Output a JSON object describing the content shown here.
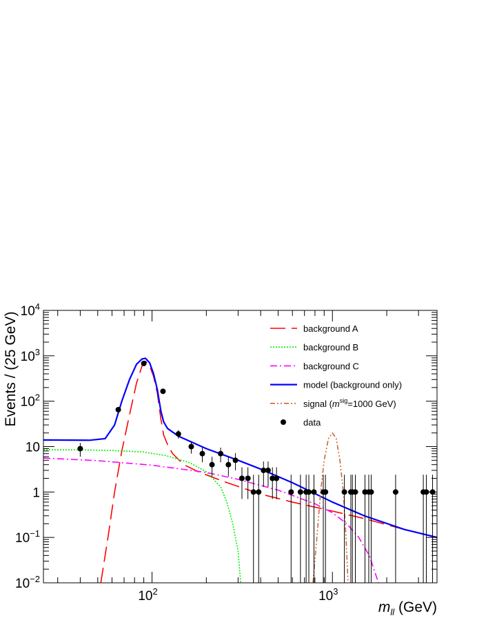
{
  "chart_data": {
    "type": "line",
    "xlabel": "m",
    "xlabel_sub": "ll",
    "xlabel_unit": " (GeV)",
    "ylabel": "Events / (25 GeV)",
    "xscale": "log",
    "yscale": "log",
    "xlim": [
      25,
      3800
    ],
    "ylim": [
      0.01,
      10000
    ],
    "x_tick_labels": [
      {
        "value": 100,
        "base": "10",
        "exp": "2"
      },
      {
        "value": 1000,
        "base": "10",
        "exp": "3"
      }
    ],
    "y_tick_labels": [
      {
        "value": 0.01,
        "base": "10",
        "exp": "−2",
        "text": ""
      },
      {
        "value": 0.1,
        "base": "10",
        "exp": "−1",
        "text": ""
      },
      {
        "value": 1,
        "text": "1"
      },
      {
        "value": 10,
        "text": "10"
      },
      {
        "value": 100,
        "base": "10",
        "exp": "2",
        "text": ""
      },
      {
        "value": 1000,
        "base": "10",
        "exp": "3",
        "text": ""
      },
      {
        "value": 10000,
        "base": "10",
        "exp": "4",
        "text": ""
      }
    ],
    "legend_position": "top-right",
    "legend": [
      {
        "label": "background A",
        "style": "dashed",
        "color": "#ff0000"
      },
      {
        "label": "background B",
        "style": "dotted",
        "color": "#00ee00"
      },
      {
        "label": "background C",
        "style": "dashdot",
        "color": "#ff00ff"
      },
      {
        "label": "model (background only)",
        "style": "solid",
        "color": "#0000ff"
      },
      {
        "label_prefix": "signal (",
        "label_var": "m",
        "label_sup": "sig",
        "label_suffix": "=1000 GeV)",
        "style": "dashdotdot",
        "color": "#cc6633"
      },
      {
        "label": "data",
        "style": "marker",
        "color": "#000000"
      }
    ],
    "series": [
      {
        "name": "background A",
        "color": "#ff0000",
        "style": "dashed",
        "points": [
          [
            52,
            0.01
          ],
          [
            57,
            0.1
          ],
          [
            62,
            1
          ],
          [
            68,
            8
          ],
          [
            75,
            50
          ],
          [
            82,
            250
          ],
          [
            88,
            600
          ],
          [
            92,
            760
          ],
          [
            97,
            600
          ],
          [
            102,
            350
          ],
          [
            107,
            150
          ],
          [
            112,
            40
          ],
          [
            116,
            18
          ],
          [
            122,
            11
          ],
          [
            130,
            7
          ],
          [
            150,
            4
          ],
          [
            180,
            2.8
          ],
          [
            250,
            1.7
          ],
          [
            400,
            0.9
          ],
          [
            600,
            0.6
          ],
          [
            1000,
            0.38
          ],
          [
            1500,
            0.26
          ],
          [
            2500,
            0.15
          ],
          [
            3800,
            0.1
          ]
        ]
      },
      {
        "name": "background B",
        "color": "#00ee00",
        "style": "dotted",
        "points": [
          [
            25,
            8.5
          ],
          [
            40,
            8.5
          ],
          [
            60,
            8.2
          ],
          [
            90,
            7.6
          ],
          [
            120,
            6.3
          ],
          [
            160,
            4.5
          ],
          [
            200,
            2.8
          ],
          [
            240,
            1.3
          ],
          [
            260,
            0.6
          ],
          [
            280,
            0.2
          ],
          [
            300,
            0.05
          ],
          [
            310,
            0.01
          ]
        ]
      },
      {
        "name": "background C",
        "color": "#ff00ff",
        "style": "dashdot",
        "points": [
          [
            25,
            5.6
          ],
          [
            50,
            4.9
          ],
          [
            100,
            3.9
          ],
          [
            200,
            2.7
          ],
          [
            300,
            1.9
          ],
          [
            500,
            1.1
          ],
          [
            800,
            0.55
          ],
          [
            1000,
            0.35
          ],
          [
            1200,
            0.2
          ],
          [
            1400,
            0.1
          ],
          [
            1600,
            0.04
          ],
          [
            1800,
            0.01
          ]
        ]
      },
      {
        "name": "model (background only)",
        "color": "#0000ff",
        "style": "solid",
        "points": [
          [
            25,
            14
          ],
          [
            45,
            13.8
          ],
          [
            55,
            15
          ],
          [
            62,
            30
          ],
          [
            68,
            100
          ],
          [
            75,
            300
          ],
          [
            82,
            650
          ],
          [
            88,
            850
          ],
          [
            92,
            880
          ],
          [
            97,
            700
          ],
          [
            102,
            400
          ],
          [
            107,
            180
          ],
          [
            112,
            60
          ],
          [
            116,
            35
          ],
          [
            122,
            25
          ],
          [
            140,
            17
          ],
          [
            200,
            9
          ],
          [
            300,
            5
          ],
          [
            400,
            3.2
          ],
          [
            600,
            1.6
          ],
          [
            1000,
            0.6
          ],
          [
            1500,
            0.3
          ],
          [
            2500,
            0.15
          ],
          [
            3800,
            0.1
          ]
        ]
      },
      {
        "name": "signal",
        "color": "#cc6633",
        "style": "dashdotdot",
        "points": [
          [
            780,
            0.01
          ],
          [
            820,
            0.1
          ],
          [
            860,
            1
          ],
          [
            900,
            5
          ],
          [
            950,
            15
          ],
          [
            1000,
            20
          ],
          [
            1050,
            15
          ],
          [
            1100,
            5
          ],
          [
            1150,
            1
          ],
          [
            1190,
            0.1
          ],
          [
            1220,
            0.01
          ]
        ]
      }
    ],
    "data_points": [
      {
        "x": 40,
        "y": 9,
        "err_low": 6,
        "err_high": 12
      },
      {
        "x": 65,
        "y": 65,
        "err_low": 57,
        "err_high": 73
      },
      {
        "x": 90,
        "y": 680,
        "err_low": 654,
        "err_high": 706
      },
      {
        "x": 115,
        "y": 165,
        "err_low": 152,
        "err_high": 178
      },
      {
        "x": 140,
        "y": 19,
        "err_low": 15,
        "err_high": 23
      },
      {
        "x": 165,
        "y": 10,
        "err_low": 7,
        "err_high": 13
      },
      {
        "x": 190,
        "y": 7,
        "err_low": 4.5,
        "err_high": 9.5
      },
      {
        "x": 215,
        "y": 4,
        "err_low": 2.2,
        "err_high": 6
      },
      {
        "x": 240,
        "y": 7,
        "err_low": 4.5,
        "err_high": 9.5
      },
      {
        "x": 265,
        "y": 4,
        "err_low": 2.2,
        "err_high": 6
      },
      {
        "x": 290,
        "y": 5,
        "err_low": 3,
        "err_high": 7.2
      },
      {
        "x": 315,
        "y": 2,
        "err_low": 0.7,
        "err_high": 3.5
      },
      {
        "x": 340,
        "y": 2,
        "err_low": 0.7,
        "err_high": 3.5
      },
      {
        "x": 365,
        "y": 1,
        "err_low": 0.01,
        "err_high": 2.4
      },
      {
        "x": 390,
        "y": 1,
        "err_low": 0.01,
        "err_high": 2.4
      },
      {
        "x": 415,
        "y": 3,
        "err_low": 1.3,
        "err_high": 4.7
      },
      {
        "x": 440,
        "y": 3,
        "err_low": 1.3,
        "err_high": 4.7
      },
      {
        "x": 465,
        "y": 2,
        "err_low": 0.7,
        "err_high": 3.5
      },
      {
        "x": 490,
        "y": 2,
        "err_low": 0.7,
        "err_high": 3.5
      },
      {
        "x": 590,
        "y": 1,
        "err_low": 0.01,
        "err_high": 2.4
      },
      {
        "x": 665,
        "y": 1,
        "err_low": 0.01,
        "err_high": 2.4
      },
      {
        "x": 715,
        "y": 1,
        "err_low": 0.01,
        "err_high": 2.4
      },
      {
        "x": 740,
        "y": 1,
        "err_low": 0.01,
        "err_high": 2.4
      },
      {
        "x": 790,
        "y": 1,
        "err_low": 0.01,
        "err_high": 2.4
      },
      {
        "x": 890,
        "y": 1,
        "err_low": 0.01,
        "err_high": 2.4
      },
      {
        "x": 915,
        "y": 1,
        "err_low": 0.01,
        "err_high": 2.4
      },
      {
        "x": 1165,
        "y": 1,
        "err_low": 0.01,
        "err_high": 2.4
      },
      {
        "x": 1265,
        "y": 1,
        "err_low": 0.01,
        "err_high": 2.4
      },
      {
        "x": 1290,
        "y": 1,
        "err_low": 0.01,
        "err_high": 2.4
      },
      {
        "x": 1340,
        "y": 1,
        "err_low": 0.01,
        "err_high": 2.4
      },
      {
        "x": 1515,
        "y": 1,
        "err_low": 0.01,
        "err_high": 2.4
      },
      {
        "x": 1590,
        "y": 1,
        "err_low": 0.01,
        "err_high": 2.4
      },
      {
        "x": 1640,
        "y": 1,
        "err_low": 0.01,
        "err_high": 2.4
      },
      {
        "x": 2240,
        "y": 1,
        "err_low": 0.01,
        "err_high": 2.4
      },
      {
        "x": 3190,
        "y": 1,
        "err_low": 0.01,
        "err_high": 2.4
      },
      {
        "x": 3315,
        "y": 1,
        "err_low": 0.01,
        "err_high": 2.4
      },
      {
        "x": 3590,
        "y": 1,
        "err_low": 0.01,
        "err_high": 2.4
      }
    ]
  }
}
